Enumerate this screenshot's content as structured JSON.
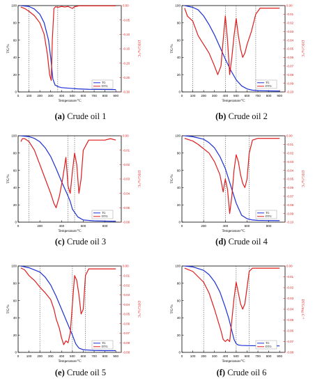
{
  "figure": {
    "captions": [
      {
        "letter": "(a)",
        "text": " Crude oil 1"
      },
      {
        "letter": "(b)",
        "text": " Crude oil 2"
      },
      {
        "letter": "(c)",
        "text": " Crude oil 3"
      },
      {
        "letter": "(d)",
        "text": " Crude oil 4"
      },
      {
        "letter": "(e)",
        "text": " Crude oil 5"
      },
      {
        "letter": "(f)",
        "text": " Crude oil 6"
      }
    ],
    "colors": {
      "tg": "#1a2fd6",
      "dtg": "#e01b1b",
      "axis": "#000000",
      "guide": "#333333"
    }
  },
  "chart_data": [
    {
      "type": "line",
      "x_ticks": [
        0,
        100,
        200,
        300,
        400,
        500,
        600,
        700,
        800,
        900
      ],
      "xlim": [
        0,
        950
      ],
      "xlabel": "Temperature/°C",
      "ylabel": "TG/%",
      "y2label": "DTG/%/°C",
      "ylim": [
        0,
        100
      ],
      "y_ticks": [
        0,
        20,
        40,
        60,
        80,
        100
      ],
      "y2lim": [
        -0.3,
        0.0
      ],
      "y2_ticks": [
        "0.00",
        "-0.05",
        "-0.10",
        "-0.15",
        "-0.20",
        "-0.25",
        "-0.30"
      ],
      "y2_tick_values": [
        0,
        -0.05,
        -0.1,
        -0.15,
        -0.2,
        -0.25,
        -0.3
      ],
      "guides": [
        100,
        365,
        520
      ],
      "legend": [
        "TG",
        "DTG"
      ],
      "legend_position": "bottom-right",
      "series": [
        {
          "name": "TG",
          "x": [
            25,
            60,
            100,
            150,
            200,
            240,
            280,
            300,
            320,
            340,
            370,
            400,
            450,
            500,
            550,
            650,
            800,
            900
          ],
          "y": [
            100,
            99.5,
            99,
            96,
            90,
            80,
            60,
            40,
            15,
            8,
            6,
            5,
            4.5,
            4,
            3.5,
            3,
            2.8,
            2.7
          ]
        },
        {
          "name": "DTG",
          "x": [
            25,
            60,
            100,
            150,
            200,
            240,
            270,
            290,
            305,
            315,
            330,
            345,
            370,
            400,
            430,
            460,
            500,
            520,
            560,
            700,
            900
          ],
          "y": [
            -0.005,
            -0.01,
            -0.02,
            -0.035,
            -0.06,
            -0.1,
            -0.17,
            -0.24,
            -0.26,
            -0.12,
            -0.01,
            -0.004,
            -0.006,
            -0.003,
            -0.005,
            -0.003,
            -0.01,
            -0.004,
            -0.001,
            -0.001,
            -0.001
          ]
        }
      ]
    },
    {
      "type": "line",
      "x_ticks": [
        0,
        100,
        200,
        300,
        400,
        500,
        600,
        700,
        800,
        900
      ],
      "xlim": [
        0,
        950
      ],
      "xlabel": "Temperature/°C",
      "ylabel": "TG/%",
      "y2label": "DTG/%/°C",
      "ylim": [
        0,
        100
      ],
      "y_ticks": [
        0,
        20,
        40,
        60,
        80,
        100
      ],
      "y2lim": [
        -0.1,
        0.0
      ],
      "y2_ticks": [
        "0.00",
        "-0.01",
        "-0.02",
        "-0.03",
        "-0.04",
        "-0.05",
        "-0.06",
        "-0.07",
        "-0.08",
        "-0.09",
        "-0.10"
      ],
      "y2_tick_values": [
        0,
        -0.01,
        -0.02,
        -0.03,
        -0.04,
        -0.05,
        -0.06,
        -0.07,
        -0.08,
        -0.09,
        -0.1
      ],
      "guides": [
        100,
        400,
        500,
        680
      ],
      "legend": [
        "TG",
        "DTG"
      ],
      "legend_position": "bottom-right",
      "series": [
        {
          "name": "TG",
          "x": [
            25,
            100,
            150,
            200,
            250,
            300,
            350,
            400,
            450,
            500,
            550,
            600,
            650,
            700,
            800,
            900
          ],
          "y": [
            100,
            98,
            95,
            88,
            78,
            66,
            52,
            38,
            25,
            14,
            7,
            3.5,
            2,
            1.5,
            1.2,
            1
          ]
        },
        {
          "name": "DTG",
          "x": [
            25,
            50,
            100,
            150,
            200,
            250,
            300,
            330,
            360,
            380,
            400,
            420,
            440,
            460,
            480,
            500,
            520,
            540,
            560,
            580,
            600,
            640,
            680,
            720,
            800,
            900
          ],
          "y": [
            -0.003,
            -0.012,
            -0.018,
            -0.035,
            -0.045,
            -0.055,
            -0.07,
            -0.08,
            -0.07,
            -0.04,
            -0.012,
            -0.04,
            -0.08,
            -0.06,
            -0.035,
            -0.015,
            -0.035,
            -0.05,
            -0.06,
            -0.055,
            -0.045,
            -0.03,
            -0.01,
            -0.003,
            -0.003,
            -0.003
          ]
        }
      ]
    },
    {
      "type": "line",
      "x_ticks": [
        0,
        200,
        400,
        600,
        800
      ],
      "xlim": [
        0,
        950
      ],
      "xlabel": "Temperature/°C",
      "ylabel": "TG/%",
      "y2label": "DTG/%/°C",
      "ylim": [
        0,
        100
      ],
      "y_ticks": [
        0,
        20,
        40,
        60,
        80,
        100
      ],
      "y2lim": [
        -0.06,
        0.0
      ],
      "y2_ticks": [
        "0.00",
        "-0.01",
        "-0.02",
        "-0.03",
        "-0.04",
        "-0.05",
        "-0.06"
      ],
      "y2_tick_values": [
        0,
        -0.01,
        -0.02,
        -0.03,
        -0.04,
        -0.05,
        -0.06
      ],
      "guides": [
        100,
        460,
        520
      ],
      "legend": [
        "TG",
        "DTG"
      ],
      "legend_position": "bottom-right",
      "series": [
        {
          "name": "TG",
          "x": [
            25,
            100,
            150,
            200,
            250,
            300,
            350,
            400,
            450,
            480,
            500,
            550,
            600,
            700,
            800,
            900
          ],
          "y": [
            100,
            99,
            97,
            93,
            86,
            76,
            62,
            47,
            33,
            24,
            15,
            6,
            2.5,
            1.5,
            1.2,
            1
          ]
        },
        {
          "name": "DTG",
          "x": [
            25,
            40,
            60,
            100,
            150,
            200,
            250,
            300,
            330,
            350,
            380,
            410,
            440,
            460,
            480,
            500,
            520,
            540,
            560,
            580,
            600,
            650,
            700,
            800,
            850,
            900
          ],
          "y": [
            -0.004,
            -0.002,
            -0.002,
            -0.004,
            -0.01,
            -0.02,
            -0.03,
            -0.04,
            -0.047,
            -0.05,
            -0.042,
            -0.03,
            -0.015,
            -0.035,
            -0.04,
            -0.025,
            -0.012,
            -0.02,
            -0.04,
            -0.03,
            -0.01,
            -0.003,
            -0.003,
            -0.003,
            -0.002,
            -0.003
          ]
        }
      ]
    },
    {
      "type": "line",
      "x_ticks": [
        0,
        200,
        400,
        600,
        800
      ],
      "xlim": [
        0,
        950
      ],
      "xlabel": "Temperature/°C",
      "ylabel": "TG/%",
      "y2label": "DTG/%/°C",
      "ylim": [
        0,
        100
      ],
      "y_ticks": [
        0,
        20,
        40,
        60,
        80,
        100
      ],
      "y2lim": [
        -0.1,
        0.0
      ],
      "y2_ticks": [
        "0.00",
        "-0.01",
        "-0.02",
        "-0.03",
        "-0.04",
        "-0.05",
        "-0.06",
        "-0.07",
        "-0.08",
        "-0.09",
        "-0.10"
      ],
      "y2_tick_values": [
        0,
        -0.01,
        -0.02,
        -0.03,
        -0.04,
        -0.05,
        -0.06,
        -0.07,
        -0.08,
        -0.09,
        -0.1
      ],
      "guides": [
        200,
        400,
        620
      ],
      "legend": [
        "TG",
        "DTG"
      ],
      "legend_position": "bottom-right",
      "series": [
        {
          "name": "TG",
          "x": [
            25,
            100,
            200,
            250,
            300,
            350,
            400,
            450,
            500,
            550,
            600,
            650,
            700,
            800,
            900
          ],
          "y": [
            100,
            99,
            96,
            92,
            86,
            76,
            62,
            42,
            22,
            8,
            4,
            2.5,
            2,
            1.8,
            1.7
          ]
        },
        {
          "name": "DTG",
          "x": [
            25,
            100,
            150,
            200,
            250,
            300,
            350,
            380,
            400,
            420,
            440,
            460,
            480,
            500,
            520,
            540,
            560,
            580,
            600,
            620,
            650,
            700,
            800,
            900
          ],
          "y": [
            -0.003,
            -0.006,
            -0.01,
            -0.015,
            -0.02,
            -0.03,
            -0.045,
            -0.065,
            -0.05,
            -0.062,
            -0.09,
            -0.07,
            -0.04,
            -0.022,
            -0.03,
            -0.045,
            -0.055,
            -0.06,
            -0.05,
            -0.02,
            -0.005,
            -0.003,
            -0.003,
            -0.003
          ]
        }
      ]
    },
    {
      "type": "line",
      "x_ticks": [
        0,
        100,
        200,
        300,
        400,
        500,
        600,
        700,
        800,
        900
      ],
      "xlim": [
        0,
        950
      ],
      "xlabel": "Temperature/°C",
      "ylabel": "TG/%",
      "y2label": "DTG/%/°C",
      "ylim": [
        0,
        100
      ],
      "y_ticks": [
        0,
        20,
        40,
        60,
        80,
        100
      ],
      "y2lim": [
        -0.09,
        0.0
      ],
      "y2_ticks": [
        "0.00",
        "-0.01",
        "-0.02",
        "-0.03",
        "-0.04",
        "-0.05",
        "-0.06",
        "-0.07",
        "-0.08",
        "-0.09"
      ],
      "y2_tick_values": [
        0,
        -0.01,
        -0.02,
        -0.03,
        -0.04,
        -0.05,
        -0.06,
        -0.07,
        -0.08,
        -0.09
      ],
      "guides": [
        200,
        500,
        620
      ],
      "legend": [
        "TG",
        "DTG"
      ],
      "legend_position": "bottom-right",
      "series": [
        {
          "name": "TG",
          "x": [
            25,
            100,
            200,
            250,
            300,
            350,
            400,
            450,
            500,
            530,
            560,
            600,
            700,
            800,
            900
          ],
          "y": [
            100,
            98,
            93,
            87,
            78,
            65,
            50,
            35,
            20,
            10,
            5,
            3,
            2.2,
            2,
            2
          ]
        },
        {
          "name": "DTG",
          "x": [
            25,
            60,
            100,
            150,
            200,
            250,
            300,
            330,
            350,
            380,
            400,
            420,
            440,
            460,
            480,
            500,
            520,
            540,
            560,
            580,
            600,
            620,
            650,
            700,
            800,
            900
          ],
          "y": [
            -0.002,
            -0.004,
            -0.01,
            -0.015,
            -0.022,
            -0.028,
            -0.035,
            -0.045,
            -0.055,
            -0.065,
            -0.075,
            -0.082,
            -0.078,
            -0.08,
            -0.07,
            -0.04,
            -0.01,
            -0.015,
            -0.03,
            -0.05,
            -0.045,
            -0.01,
            -0.003,
            -0.003,
            -0.003,
            -0.003
          ]
        }
      ]
    },
    {
      "type": "line",
      "x_ticks": [
        0,
        100,
        200,
        300,
        400,
        500,
        600,
        700,
        800,
        900
      ],
      "xlim": [
        0,
        950
      ],
      "xlabel": "Temperature/°C",
      "ylabel": "TG/%",
      "y2label": "DTG/mg·C⁻¹",
      "ylim": [
        0,
        100
      ],
      "y_ticks": [
        0,
        20,
        40,
        60,
        80,
        100
      ],
      "y2lim": [
        -0.08,
        0.0
      ],
      "y2_ticks": [
        "0.00",
        "-0.01",
        "-0.02",
        "-0.03",
        "-0.04",
        "-0.05",
        "-0.06",
        "-0.07",
        "-0.08"
      ],
      "y2_tick_values": [
        0,
        -0.01,
        -0.02,
        -0.03,
        -0.04,
        -0.05,
        -0.06,
        -0.07,
        -0.08
      ],
      "guides": [
        200,
        500,
        620
      ],
      "legend": [
        "TG",
        "DTG"
      ],
      "legend_position": "bottom-right",
      "series": [
        {
          "name": "TG",
          "x": [
            25,
            100,
            200,
            250,
            300,
            350,
            400,
            430,
            460,
            480,
            500,
            520,
            550,
            600,
            700,
            800,
            900
          ],
          "y": [
            100,
            99,
            95,
            90,
            82,
            70,
            52,
            40,
            25,
            15,
            10,
            8.5,
            8,
            7.8,
            7.6,
            7.5,
            7.5
          ]
        },
        {
          "name": "DTG",
          "x": [
            25,
            100,
            150,
            200,
            250,
            300,
            330,
            360,
            380,
            400,
            420,
            440,
            460,
            480,
            500,
            520,
            540,
            560,
            580,
            600,
            620,
            650,
            700,
            800,
            900
          ],
          "y": [
            -0.002,
            -0.005,
            -0.01,
            -0.015,
            -0.025,
            -0.04,
            -0.05,
            -0.06,
            -0.068,
            -0.07,
            -0.068,
            -0.07,
            -0.05,
            -0.03,
            -0.015,
            -0.025,
            -0.035,
            -0.04,
            -0.035,
            -0.02,
            -0.005,
            -0.002,
            -0.002,
            -0.002,
            -0.002
          ]
        }
      ]
    }
  ]
}
